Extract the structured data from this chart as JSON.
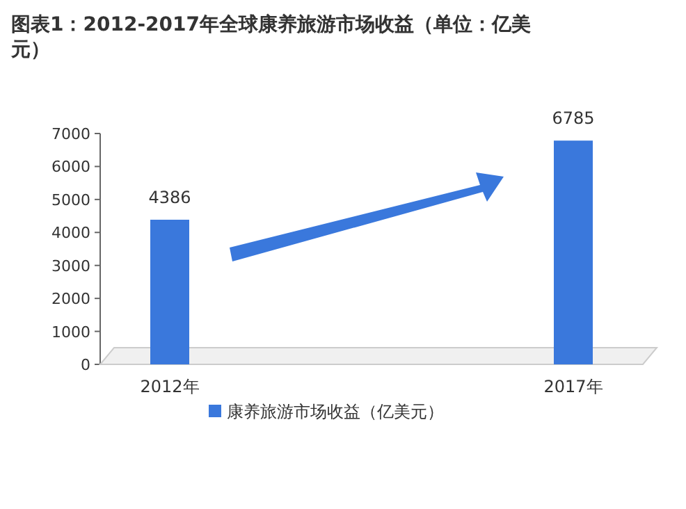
{
  "chart_data": {
    "type": "bar",
    "title": "图表1：2012-2017年全球康养旅游市场收益（单位：亿美元）",
    "categories": [
      "2012年",
      "2017年"
    ],
    "series": [
      {
        "name": "康养旅游市场收益（亿美元）",
        "color": "#3a78dc",
        "values": [
          4386,
          6785
        ]
      }
    ],
    "ylim": [
      0,
      7000
    ],
    "yticks": [
      0,
      1000,
      2000,
      3000,
      4000,
      5000,
      6000,
      7000
    ],
    "data_labels": true,
    "grid": false,
    "legend": "bottom"
  }
}
